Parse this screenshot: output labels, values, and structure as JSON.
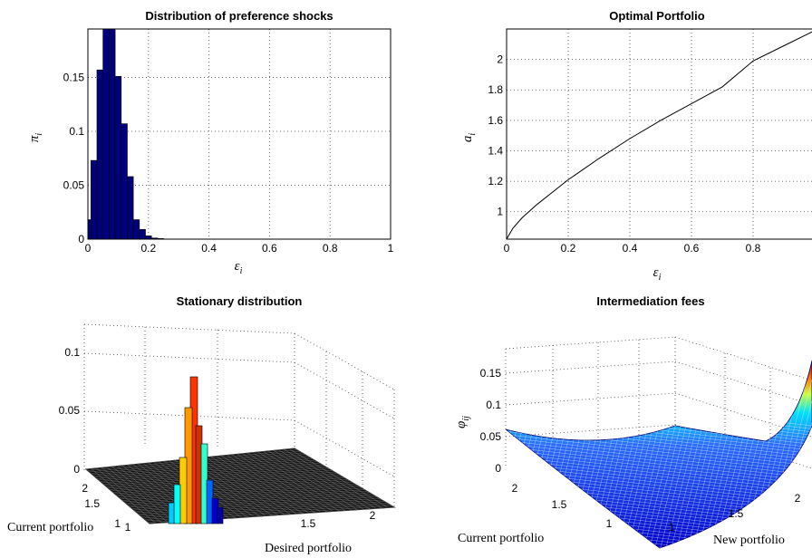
{
  "chart_data": [
    {
      "type": "bar",
      "title": "Distribution of preference shocks",
      "xlabel": "ε_i",
      "ylabel": "π_i",
      "xlim": [
        0,
        1
      ],
      "ylim": [
        0,
        0.195
      ],
      "xticks": [
        "0",
        "0.2",
        "0.4",
        "0.6",
        "0.8",
        "1"
      ],
      "yticks": [
        "0",
        "0.05",
        "0.1",
        "0.15"
      ],
      "grid": true,
      "bar_color": "#00007f",
      "x": [
        0.0,
        0.02,
        0.04,
        0.06,
        0.08,
        0.1,
        0.12,
        0.14,
        0.16,
        0.18,
        0.2,
        0.22,
        0.24
      ],
      "values": [
        0.018,
        0.073,
        0.157,
        0.195,
        0.195,
        0.151,
        0.107,
        0.058,
        0.018,
        0.009,
        0.003,
        0.001,
        0.0005
      ]
    },
    {
      "type": "line",
      "title": "Optimal Portfolio",
      "xlabel": "ε_i",
      "ylabel": "a_i",
      "xlim": [
        0,
        1
      ],
      "ylim": [
        0.82,
        2.2
      ],
      "xticks": [
        "0",
        "0.2",
        "0.4",
        "0.6",
        "0.8",
        "1"
      ],
      "yticks": [
        "1",
        "1.2",
        "1.4",
        "1.6",
        "1.8",
        "2"
      ],
      "grid": true,
      "x": [
        0,
        0.02,
        0.05,
        0.1,
        0.15,
        0.2,
        0.25,
        0.3,
        0.4,
        0.5,
        0.6,
        0.7,
        0.8,
        0.9,
        1.0
      ],
      "y": [
        0.82,
        0.89,
        0.96,
        1.05,
        1.13,
        1.21,
        1.28,
        1.35,
        1.48,
        1.6,
        1.71,
        1.82,
        1.99,
        2.09,
        2.19
      ]
    },
    {
      "type": "surface3d",
      "title": "Stationary distribution",
      "xlabel": "Desired portfolio",
      "ylabel": "Current portfolio",
      "zticks": [
        "0",
        "0.05",
        "0.1"
      ],
      "xticks": [
        "1",
        "1.5",
        "2"
      ],
      "yticks": [
        "1",
        "1.5",
        "2"
      ]
    },
    {
      "type": "surface3d",
      "title": "Intermediation fees",
      "xlabel": "New portfolio",
      "ylabel": "Current portfolio",
      "zlabel": "φ_ij",
      "zticks": [
        "0",
        "0.05",
        "0.1",
        "0.15"
      ],
      "xticks": [
        "1",
        "1.5",
        "2"
      ],
      "yticks": [
        "1",
        "1.5",
        "2"
      ]
    }
  ]
}
